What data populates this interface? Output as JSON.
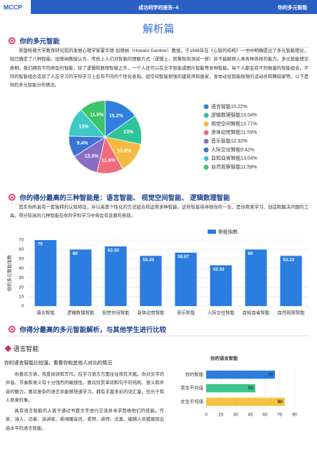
{
  "header": {
    "logo": "MCCP",
    "center": "成功同学的报告--6",
    "right": "你的多元智能"
  },
  "page_title": "解析篇",
  "sections": [
    {
      "heading": "你的多元智能",
      "paragraph": "美国哈佛大学教育研究院的发展心理学家霍华德·加德纳（Howard Gardner）教授，于1986年在《心智的结构》一书中明确提出了多元智能理论，现已确定了八种智能。加德纳教授认为，传统上人们对智能的理解方式（逻辑上，就像智商测试一样）并不能解释人类各种各样的能力。多元智能理论表明，我们拥有不同类型的智能，除了逻辑和数理智能之外，一个人还可以在文字智能或图片智能等多种智能。每个人都会有不同数量的智能组合，不同的智能组合造就了人在学习的学科学习上会有不同的个性化表现。如空间智能很强的建筑师和画家，身体动觉智能极强的运动员和舞蹈家等。以下是你的多元智能分布情况。"
    },
    {
      "heading": "你的得分最高的三种智能是：语言智能、 视觉空间智能、 逻辑数理智能",
      "paragraph": "其实你所具有一套独特的认知特征，并以高度个性化的方式组合和运用多种智能。这些智能将伴随你的一生，是你用来学习、创造和解决问题的工具。得分较高的几种智能在你的学科学习中将会有显著的表现。"
    },
    {
      "heading": "你得分最高的多元智能解析，与其他学生进行比较",
      "subheading": "语言智能",
      "lead": "你的语言智能比较强，看看你和其他人对比的情况",
      "paragraphs": [
        "你喜欢言语，热爱阅读和写作。在学习语言方面往往很有天赋。你对文字的声音、节奏和意义有十分强烈的敏感性，喜欢欣赏单词和句子的结构、意义和声音的魅力。喜欢复杂的语言并能够快速学习，拥有丰富多彩的词汇量，也乐于和人熟来的事。",
        "具有语言智能的人善于通过书面文字进行交流并寻求赞扬他们的技能。作家、诗人、记者、演讲家、新闻播音员、老师、讲师、文案、编辑人员都展现出高水平的语言智能。"
      ]
    }
  ],
  "chart_data": [
    {
      "type": "pie",
      "categories": [
        "语言智能15.22%",
        "逻辑数理智能13.04%",
        "视觉空间智能13.77%",
        "身体动觉智能11.59%",
        "音乐智能12.32%",
        "人际交往智能9.42%",
        "自知自省智能13.04%",
        "自然观察智能11.59%"
      ],
      "values": [
        15.22,
        13.04,
        13.77,
        11.59,
        12.32,
        9.42,
        13.04,
        11.59
      ],
      "value_labels": [
        "15.2%",
        "13%",
        "13.8%",
        "11.6%",
        "12.3%",
        "9.4%",
        "13%",
        "11.6%"
      ],
      "colors": [
        "#2f7fe0",
        "#2ec49a",
        "#f5b942",
        "#f06b7c",
        "#8a6cc4",
        "#3a72d6",
        "#3fc9c6",
        "#3cc46a"
      ]
    },
    {
      "type": "bar",
      "categories": [
        "语言智能",
        "逻辑数理智能",
        "视觉空间智能",
        "身体动觉智能",
        "音乐智能",
        "人际交往智能",
        "自知自省智能",
        "自然观察智能"
      ],
      "series": [
        {
          "name": "智能指数",
          "color": "#2b7de0",
          "values": [
            70,
            60,
            63.33,
            53.33,
            56.67,
            43.33,
            60,
            53.33
          ]
        }
      ],
      "ylabel": "你的多元智能指数",
      "ylim": [
        0,
        70
      ],
      "yticks": [
        0,
        10,
        20,
        30,
        40,
        50,
        60,
        70
      ],
      "grid": true
    },
    {
      "type": "hbar",
      "title": "你的语言智能",
      "categories": [
        "你的智能",
        "男生平均值",
        "女生平均值"
      ],
      "values": [
        70,
        50,
        80
      ],
      "colors": [
        "#2b7de0",
        "#3cc48a",
        "#f5c242"
      ],
      "xlim": [
        0,
        90
      ],
      "xticks": [
        0,
        15,
        30,
        45,
        60,
        75,
        90
      ],
      "grid": true
    }
  ]
}
